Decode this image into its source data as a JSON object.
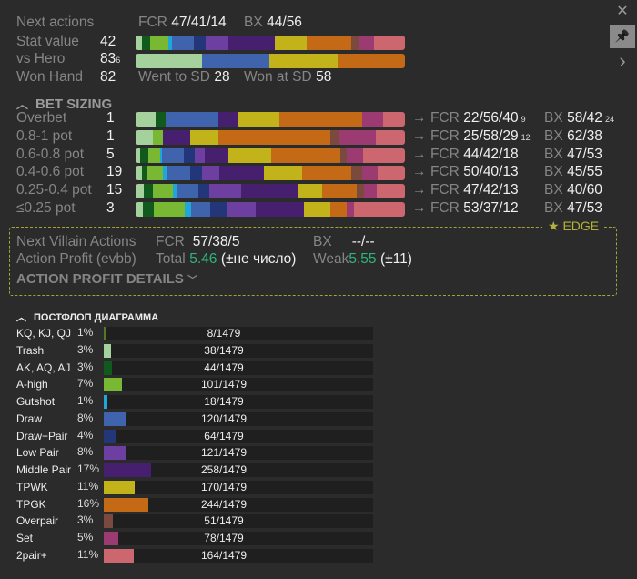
{
  "colors": {
    "kq": "#4e7a2a",
    "trash": "#a4d19c",
    "akq": "#0f5a1c",
    "ahigh": "#78b833",
    "gutshot": "#21a6da",
    "draw": "#3f64ad",
    "drawpair": "#23367a",
    "lowpair": "#6c3fa0",
    "midpair": "#46206f",
    "tpwk": "#c3b31b",
    "tpgk": "#c46a16",
    "overpair": "#7a4a3f",
    "set": "#9b3b72",
    "twopair": "#cc666f"
  },
  "side": {
    "close": "✕",
    "pin": "📌",
    "next": "›"
  },
  "top": {
    "next_actions_label": "Next actions",
    "fcr_label": "FCR",
    "fcr_value": "47/41/14",
    "bx_label": "BX",
    "bx_value": "44/56",
    "stat_label": "Stat value",
    "stat_value": "42",
    "vs_hero_label": "vs Hero",
    "vs_hero_value": "83",
    "vs_hero_sub": "6",
    "won_label": "Won Hand",
    "won_value": "82",
    "went_sd_label": "Went to SD",
    "went_sd_value": "28",
    "won_sd_label": "Won at SD",
    "won_sd_value": "58",
    "stat_bar": [
      [
        "trash",
        2.5
      ],
      [
        "akq",
        3
      ],
      [
        "ahigh",
        6.8
      ],
      [
        "gutshot",
        1.4
      ],
      [
        "draw",
        8
      ],
      [
        "drawpair",
        4.3
      ],
      [
        "lowpair",
        8.4
      ],
      [
        "midpair",
        17.4
      ],
      [
        "tpwk",
        11.9
      ],
      [
        "tpgk",
        16.5
      ],
      [
        "overpair",
        2.8
      ],
      [
        "set",
        5.7
      ],
      [
        "twopair",
        11.4
      ]
    ],
    "hero_bar": [
      [
        "trash",
        24.8
      ],
      [
        "draw",
        25
      ],
      [
        "tpwk",
        25.2
      ],
      [
        "tpgk",
        25
      ]
    ]
  },
  "bet_sizing": {
    "title": "BET SIZING",
    "arrow": "→",
    "fcr_label": "FCR",
    "bx_label": "BX",
    "rows": [
      {
        "label": "Overbet",
        "count": "1",
        "fcr": "22/56/40",
        "fcr_sub": "9",
        "bx": "58/42",
        "bx_sub": "24",
        "bar": [
          [
            "trash",
            50
          ],
          [
            "akq",
            23
          ],
          [
            "draw",
            130
          ],
          [
            "midpair",
            48
          ],
          [
            "tpwk",
            102
          ],
          [
            "tpgk",
            203
          ],
          [
            "set",
            50
          ],
          [
            "twopair",
            54
          ]
        ]
      },
      {
        "label": "0.8-1 pot",
        "count": "1",
        "fcr": "25/58/29",
        "fcr_sub": "12",
        "bx": "62/38",
        "bx_sub": "",
        "bar": [
          [
            "trash",
            43
          ],
          [
            "ahigh",
            25
          ],
          [
            "midpair",
            65
          ],
          [
            "tpwk",
            70
          ],
          [
            "tpgk",
            275
          ],
          [
            "overpair",
            20
          ],
          [
            "set",
            90
          ],
          [
            "twopair",
            72
          ]
        ]
      },
      {
        "label": "0.6-0.8 pot",
        "count": "5",
        "fcr": "44/42/18",
        "fcr_sub": "",
        "bx": "47/53",
        "bx_sub": "",
        "bar": [
          [
            "trash",
            11
          ],
          [
            "akq",
            20
          ],
          [
            "ahigh",
            29
          ],
          [
            "gutshot",
            5
          ],
          [
            "draw",
            53
          ],
          [
            "drawpair",
            28
          ],
          [
            "lowpair",
            24
          ],
          [
            "midpair",
            58
          ],
          [
            "tpwk",
            105
          ],
          [
            "tpgk",
            168
          ],
          [
            "overpair",
            17
          ],
          [
            "set",
            40
          ],
          [
            "twopair",
            102
          ]
        ]
      },
      {
        "label": "0.4-0.6 pot",
        "count": "19",
        "fcr": "50/40/13",
        "fcr_sub": "",
        "bx": "45/55",
        "bx_sub": "",
        "bar": [
          [
            "trash",
            15
          ],
          [
            "akq",
            13
          ],
          [
            "ahigh",
            39
          ],
          [
            "gutshot",
            8
          ],
          [
            "draw",
            58
          ],
          [
            "drawpair",
            30
          ],
          [
            "lowpair",
            43
          ],
          [
            "midpair",
            109
          ],
          [
            "tpwk",
            93
          ],
          [
            "tpgk",
            120
          ],
          [
            "overpair",
            28
          ],
          [
            "set",
            37
          ],
          [
            "twopair",
            67
          ]
        ]
      },
      {
        "label": "0.25-0.4 pot",
        "count": "15",
        "fcr": "47/42/13",
        "fcr_sub": "",
        "bx": "40/60",
        "bx_sub": "",
        "bar": [
          [
            "trash",
            20
          ],
          [
            "akq",
            23
          ],
          [
            "ahigh",
            48
          ],
          [
            "gutshot",
            9
          ],
          [
            "draw",
            53
          ],
          [
            "drawpair",
            28
          ],
          [
            "lowpair",
            77
          ],
          [
            "midpair",
            140
          ],
          [
            "tpwk",
            60
          ],
          [
            "tpgk",
            85
          ],
          [
            "overpair",
            17
          ],
          [
            "set",
            30
          ],
          [
            "twopair",
            70
          ]
        ]
      },
      {
        "label": "≤0.25 pot",
        "count": "3",
        "fcr": "53/37/12",
        "fcr_sub": "",
        "bx": "47/53",
        "bx_sub": "",
        "bar": [
          [
            "trash",
            18
          ],
          [
            "akq",
            26
          ],
          [
            "ahigh",
            77
          ],
          [
            "gutshot",
            15
          ],
          [
            "draw",
            47
          ],
          [
            "drawpair",
            42
          ],
          [
            "lowpair",
            70
          ],
          [
            "midpair",
            118
          ],
          [
            "tpwk",
            65
          ],
          [
            "tpgk",
            40
          ],
          [
            "set",
            18
          ],
          [
            "twopair",
            124
          ]
        ]
      }
    ]
  },
  "edge": {
    "label": "EDGE",
    "star": "★",
    "villain_label": "Next Villain Actions",
    "fcr_label": "FCR",
    "fcr_value": "57/38/5",
    "bx_label": "BX",
    "bx_value": "--/--",
    "profit_label": "Action Profit (evbb)",
    "total_label": "Total",
    "total_value": "5.46",
    "total_err": "(±не число)",
    "weak_label": "Weak",
    "weak_value": "5.55",
    "weak_err": "(±11)",
    "details_label": "ACTION PROFIT DETAILS"
  },
  "postflop": {
    "title": "ПОСТФЛОП ДИАГРАММА",
    "total": 1479,
    "rows": [
      {
        "name": "KQ, KJ, QJ",
        "pct": "1%",
        "count": 8,
        "text": "8/1479",
        "key": "kq"
      },
      {
        "name": "Trash",
        "pct": "3%",
        "count": 38,
        "text": "38/1479",
        "key": "trash"
      },
      {
        "name": "AK, AQ, AJ",
        "pct": "3%",
        "count": 44,
        "text": "44/1479",
        "key": "akq"
      },
      {
        "name": "A-high",
        "pct": "7%",
        "count": 101,
        "text": "101/1479",
        "key": "ahigh"
      },
      {
        "name": "Gutshot",
        "pct": "1%",
        "count": 18,
        "text": "18/1479",
        "key": "gutshot"
      },
      {
        "name": "Draw",
        "pct": "8%",
        "count": 120,
        "text": "120/1479",
        "key": "draw"
      },
      {
        "name": "Draw+Pair",
        "pct": "4%",
        "count": 64,
        "text": "64/1479",
        "key": "drawpair"
      },
      {
        "name": "Low Pair",
        "pct": "8%",
        "count": 121,
        "text": "121/1479",
        "key": "lowpair"
      },
      {
        "name": "Middle Pair",
        "pct": "17%",
        "count": 258,
        "text": "258/1479",
        "key": "midpair"
      },
      {
        "name": "TPWK",
        "pct": "11%",
        "count": 170,
        "text": "170/1479",
        "key": "tpwk"
      },
      {
        "name": "TPGK",
        "pct": "16%",
        "count": 244,
        "text": "244/1479",
        "key": "tpgk"
      },
      {
        "name": "Overpair",
        "pct": "3%",
        "count": 51,
        "text": "51/1479",
        "key": "overpair"
      },
      {
        "name": "Set",
        "pct": "5%",
        "count": 78,
        "text": "78/1479",
        "key": "set"
      },
      {
        "name": "2pair+",
        "pct": "11%",
        "count": 164,
        "text": "164/1479",
        "key": "twopair"
      }
    ]
  }
}
